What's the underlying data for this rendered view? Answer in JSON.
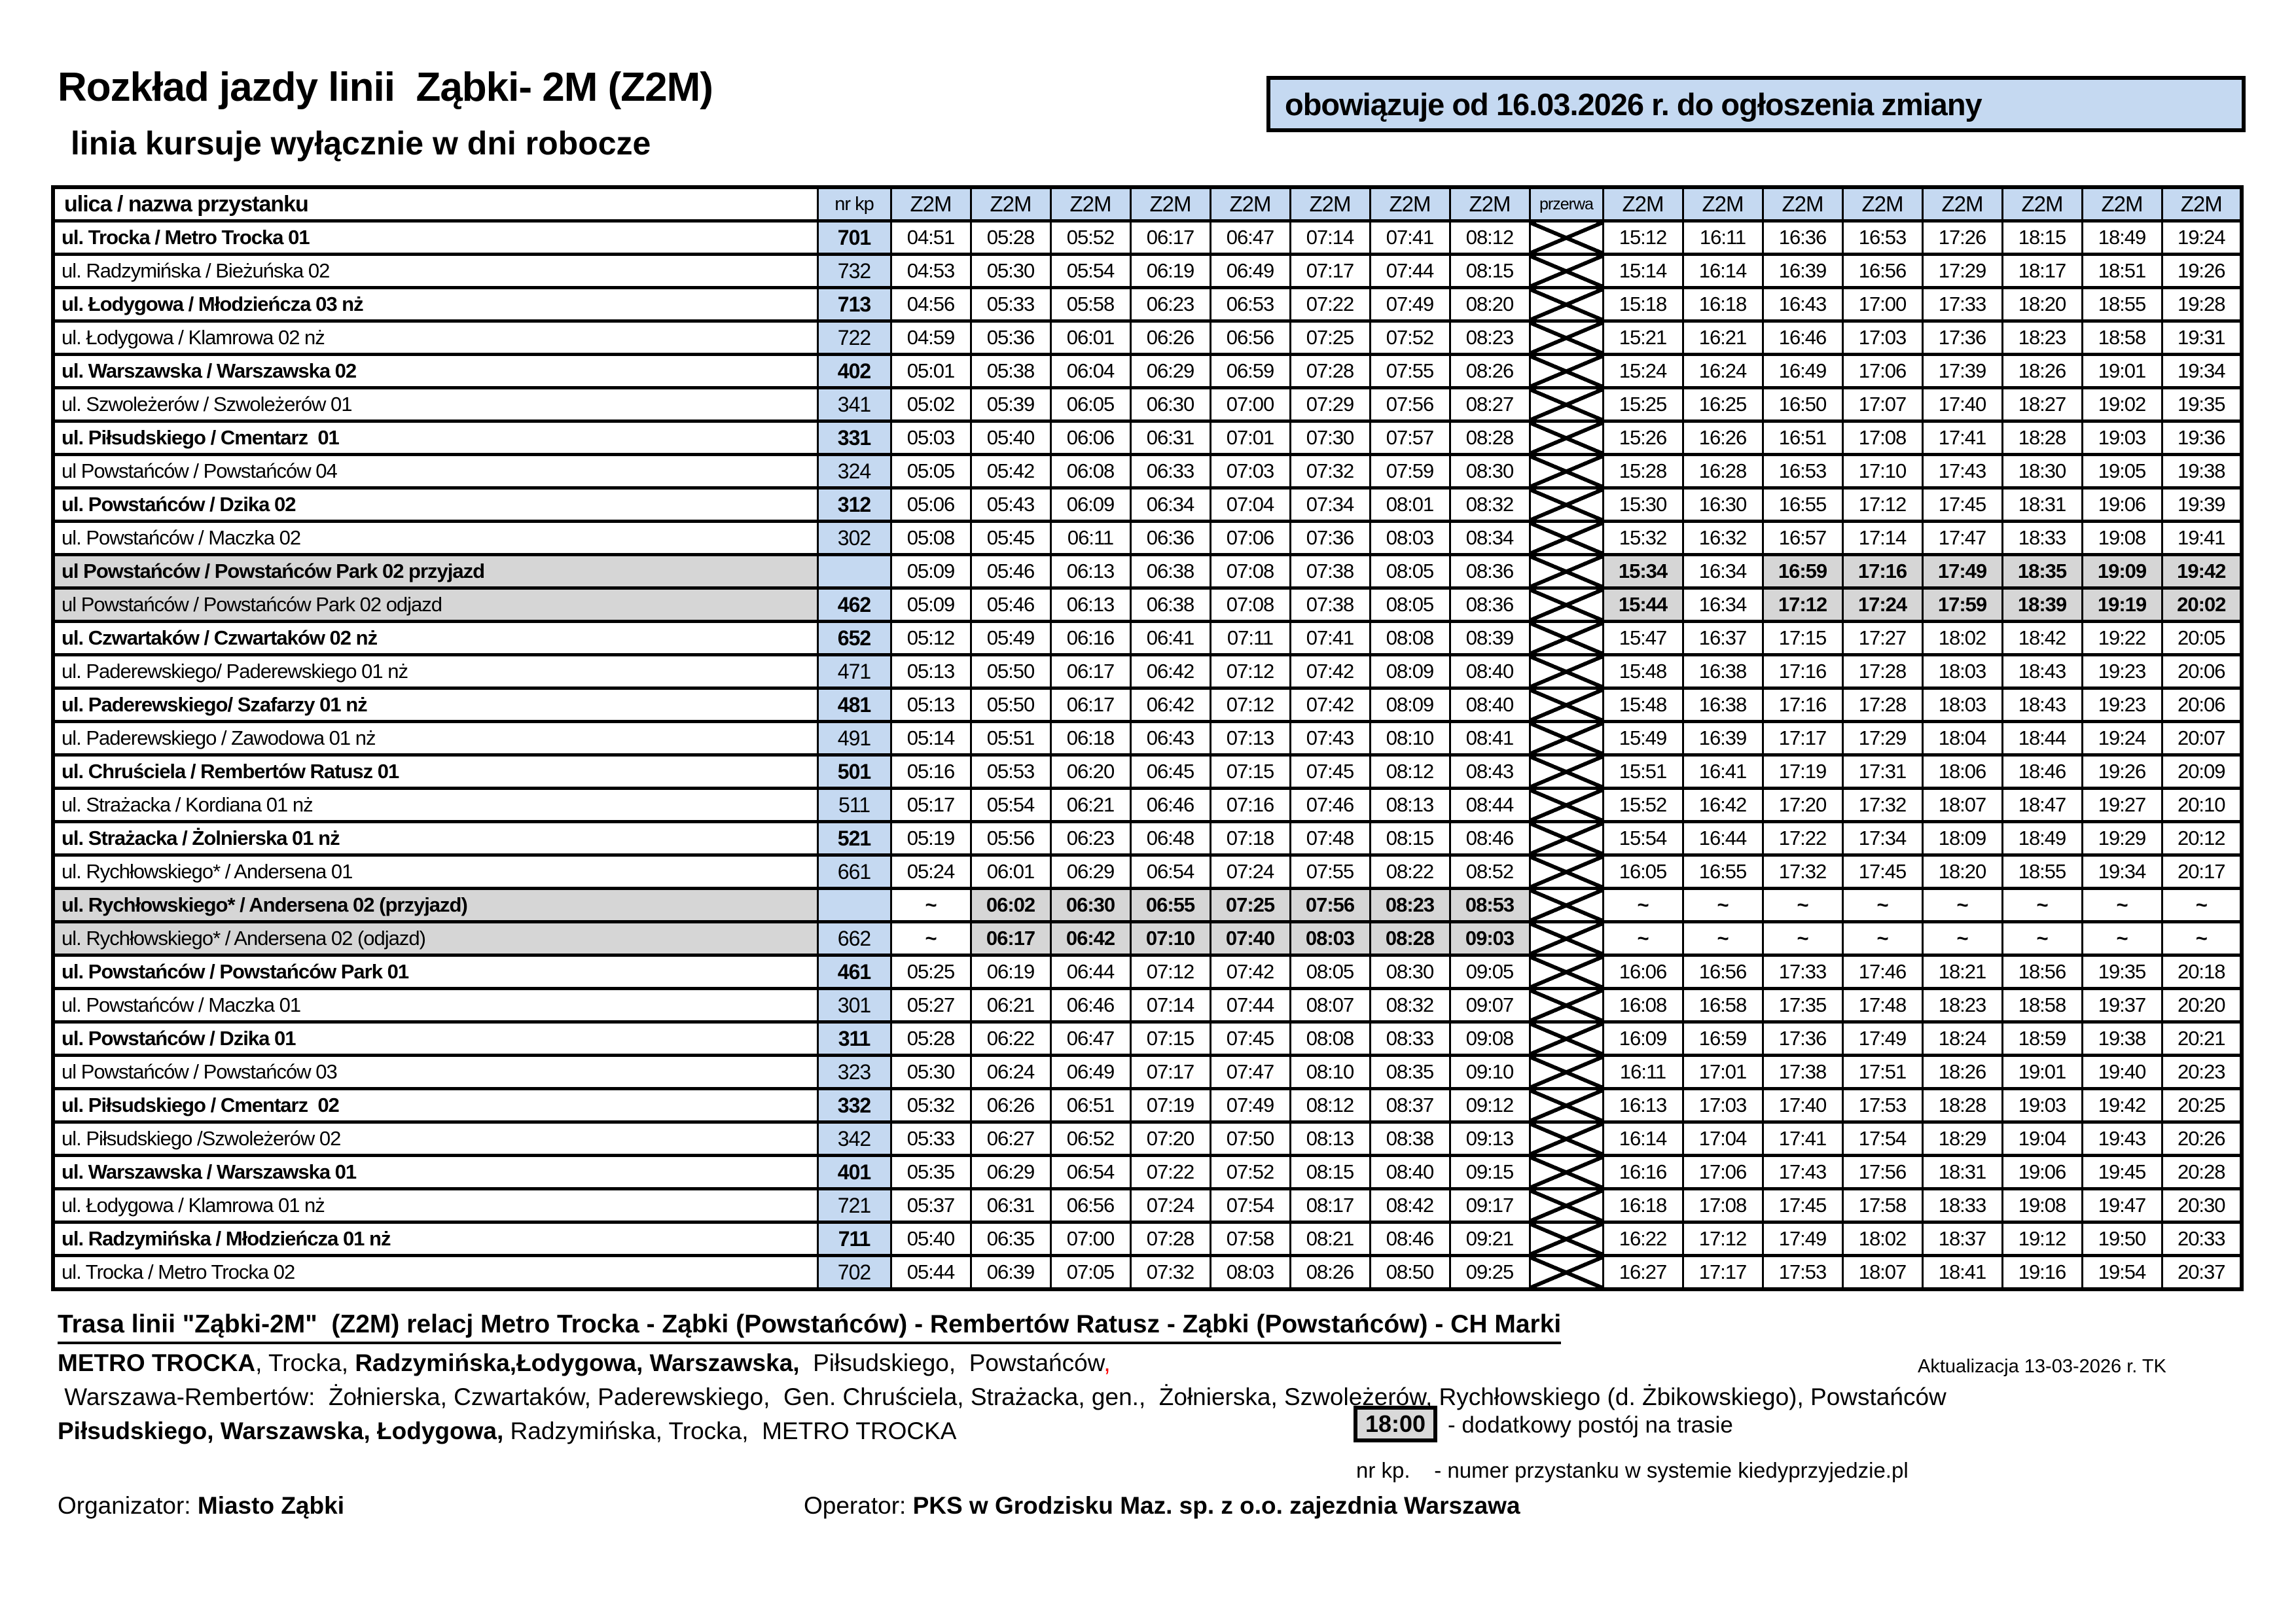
{
  "title": "Rozkład jazdy linii  Ząbki- 2M (Z2M)",
  "subtitle": "linia kursuje wyłącznie w dni robocze",
  "validity_note": "obowiązuje od 16.03.2026 r. do ogłoszenia zmiany",
  "colors": {
    "header_blue": "#c5d9f1",
    "highlight_gray": "#d6d6d6",
    "red": "#ff0000"
  },
  "table": {
    "col_street": "ulica / nazwa przystanku",
    "col_nr": "nr kp",
    "col_line": "Z2M",
    "col_break": "przerwa",
    "rows": [
      {
        "name": "ul. Trocka / Metro Trocka 01",
        "nr": "701",
        "bold": true,
        "times": [
          "04:51",
          "05:28",
          "05:52",
          "06:17",
          "06:47",
          "07:14",
          "07:41",
          "08:12",
          "15:12",
          "16:11",
          "16:36",
          "16:53",
          "17:26",
          "18:15",
          "18:49",
          "19:24"
        ]
      },
      {
        "name": "ul. Radzymińska / Bieżuńska 02",
        "nr": "732",
        "bold": false,
        "times": [
          "04:53",
          "05:30",
          "05:54",
          "06:19",
          "06:49",
          "07:17",
          "07:44",
          "08:15",
          "15:14",
          "16:14",
          "16:39",
          "16:56",
          "17:29",
          "18:17",
          "18:51",
          "19:26"
        ]
      },
      {
        "name": "ul. Łodygowa / Młodzieńcza 03 nż",
        "nr": "713",
        "bold": true,
        "times": [
          "04:56",
          "05:33",
          "05:58",
          "06:23",
          "06:53",
          "07:22",
          "07:49",
          "08:20",
          "15:18",
          "16:18",
          "16:43",
          "17:00",
          "17:33",
          "18:20",
          "18:55",
          "19:28"
        ]
      },
      {
        "name": "ul. Łodygowa / Klamrowa 02 nż",
        "nr": "722",
        "bold": false,
        "times": [
          "04:59",
          "05:36",
          "06:01",
          "06:26",
          "06:56",
          "07:25",
          "07:52",
          "08:23",
          "15:21",
          "16:21",
          "16:46",
          "17:03",
          "17:36",
          "18:23",
          "18:58",
          "19:31"
        ]
      },
      {
        "name": "ul. Warszawska / Warszawska 02",
        "nr": "402",
        "bold": true,
        "times": [
          "05:01",
          "05:38",
          "06:04",
          "06:29",
          "06:59",
          "07:28",
          "07:55",
          "08:26",
          "15:24",
          "16:24",
          "16:49",
          "17:06",
          "17:39",
          "18:26",
          "19:01",
          "19:34"
        ]
      },
      {
        "name": "ul. Szwoleżerów / Szwoleżerów 01",
        "nr": "341",
        "bold": false,
        "times": [
          "05:02",
          "05:39",
          "06:05",
          "06:30",
          "07:00",
          "07:29",
          "07:56",
          "08:27",
          "15:25",
          "16:25",
          "16:50",
          "17:07",
          "17:40",
          "18:27",
          "19:02",
          "19:35"
        ]
      },
      {
        "name": "ul. Piłsudskiego / Cmentarz  01",
        "nr": "331",
        "bold": true,
        "times": [
          "05:03",
          "05:40",
          "06:06",
          "06:31",
          "07:01",
          "07:30",
          "07:57",
          "08:28",
          "15:26",
          "16:26",
          "16:51",
          "17:08",
          "17:41",
          "18:28",
          "19:03",
          "19:36"
        ]
      },
      {
        "name": "ul Powstańców / Powstańców 04",
        "nr": "324",
        "bold": false,
        "times": [
          "05:05",
          "05:42",
          "06:08",
          "06:33",
          "07:03",
          "07:32",
          "07:59",
          "08:30",
          "15:28",
          "16:28",
          "16:53",
          "17:10",
          "17:43",
          "18:30",
          "19:05",
          "19:38"
        ]
      },
      {
        "name": "ul. Powstańców / Dzika 02",
        "nr": "312",
        "bold": true,
        "times": [
          "05:06",
          "05:43",
          "06:09",
          "06:34",
          "07:04",
          "07:34",
          "08:01",
          "08:32",
          "15:30",
          "16:30",
          "16:55",
          "17:12",
          "17:45",
          "18:31",
          "19:06",
          "19:39"
        ]
      },
      {
        "name": "ul. Powstańców / Maczka 02",
        "nr": "302",
        "bold": false,
        "times": [
          "05:08",
          "05:45",
          "06:11",
          "06:36",
          "07:06",
          "07:36",
          "08:03",
          "08:34",
          "15:32",
          "16:32",
          "16:57",
          "17:14",
          "17:47",
          "18:33",
          "19:08",
          "19:41"
        ]
      },
      {
        "name": "ul Powstańców / Powstańców Park 02 przyjazd",
        "nr": "",
        "bold": true,
        "gray": true,
        "gray_cells": [
          8,
          10,
          11,
          12,
          13,
          14,
          15
        ],
        "times": [
          "05:09",
          "05:46",
          "06:13",
          "06:38",
          "07:08",
          "07:38",
          "08:05",
          "08:36",
          "15:34",
          "16:34",
          "16:59",
          "17:16",
          "17:49",
          "18:35",
          "19:09",
          "19:42"
        ]
      },
      {
        "name": "ul Powstańców / Powstańców Park 02 odjazd",
        "nr": "462",
        "bold": false,
        "nr_bold": true,
        "gray": true,
        "gray_cells": [
          8,
          10,
          11,
          12,
          13,
          14,
          15
        ],
        "times": [
          "05:09",
          "05:46",
          "06:13",
          "06:38",
          "07:08",
          "07:38",
          "08:05",
          "08:36",
          "15:44",
          "16:34",
          "17:12",
          "17:24",
          "17:59",
          "18:39",
          "19:19",
          "20:02"
        ]
      },
      {
        "name": "ul. Czwartaków / Czwartaków 02 nż",
        "nr": "652",
        "bold": true,
        "times": [
          "05:12",
          "05:49",
          "06:16",
          "06:41",
          "07:11",
          "07:41",
          "08:08",
          "08:39",
          "15:47",
          "16:37",
          "17:15",
          "17:27",
          "18:02",
          "18:42",
          "19:22",
          "20:05"
        ]
      },
      {
        "name": "ul. Paderewskiego/ Paderewskiego 01 nż",
        "nr": "471",
        "bold": false,
        "times": [
          "05:13",
          "05:50",
          "06:17",
          "06:42",
          "07:12",
          "07:42",
          "08:09",
          "08:40",
          "15:48",
          "16:38",
          "17:16",
          "17:28",
          "18:03",
          "18:43",
          "19:23",
          "20:06"
        ]
      },
      {
        "name": "ul. Paderewskiego/ Szafarzy 01 nż",
        "nr": "481",
        "bold": true,
        "times": [
          "05:13",
          "05:50",
          "06:17",
          "06:42",
          "07:12",
          "07:42",
          "08:09",
          "08:40",
          "15:48",
          "16:38",
          "17:16",
          "17:28",
          "18:03",
          "18:43",
          "19:23",
          "20:06"
        ]
      },
      {
        "name": "ul. Paderewskiego / Zawodowa 01 nż",
        "nr": "491",
        "bold": false,
        "times": [
          "05:14",
          "05:51",
          "06:18",
          "06:43",
          "07:13",
          "07:43",
          "08:10",
          "08:41",
          "15:49",
          "16:39",
          "17:17",
          "17:29",
          "18:04",
          "18:44",
          "19:24",
          "20:07"
        ]
      },
      {
        "name": "ul. Chruściela / Rembertów Ratusz 01",
        "nr": "501",
        "bold": true,
        "times": [
          "05:16",
          "05:53",
          "06:20",
          "06:45",
          "07:15",
          "07:45",
          "08:12",
          "08:43",
          "15:51",
          "16:41",
          "17:19",
          "17:31",
          "18:06",
          "18:46",
          "19:26",
          "20:09"
        ]
      },
      {
        "name": "ul. Strażacka / Kordiana 01 nż",
        "nr": "511",
        "bold": false,
        "times": [
          "05:17",
          "05:54",
          "06:21",
          "06:46",
          "07:16",
          "07:46",
          "08:13",
          "08:44",
          "15:52",
          "16:42",
          "17:20",
          "17:32",
          "18:07",
          "18:47",
          "19:27",
          "20:10"
        ]
      },
      {
        "name": "ul. Strażacka / Żolnierska 01 nż",
        "nr": "521",
        "bold": true,
        "times": [
          "05:19",
          "05:56",
          "06:23",
          "06:48",
          "07:18",
          "07:48",
          "08:15",
          "08:46",
          "15:54",
          "16:44",
          "17:22",
          "17:34",
          "18:09",
          "18:49",
          "19:29",
          "20:12"
        ]
      },
      {
        "name": "ul. Rychłowskiego* / Andersena 01",
        "nr": "661",
        "bold": false,
        "times": [
          "05:24",
          "06:01",
          "06:29",
          "06:54",
          "07:24",
          "07:55",
          "08:22",
          "08:52",
          "16:05",
          "16:55",
          "17:32",
          "17:45",
          "18:20",
          "18:55",
          "19:34",
          "20:17"
        ]
      },
      {
        "name": "ul. Rychłowskiego* / Andersena 02 (przyjazd)",
        "nr": "",
        "bold": true,
        "gray": true,
        "gray_cells": [
          1,
          2,
          3,
          4,
          5,
          6,
          7
        ],
        "times": [
          "~",
          "06:02",
          "06:30",
          "06:55",
          "07:25",
          "07:56",
          "08:23",
          "08:53",
          "~",
          "~",
          "~",
          "~",
          "~",
          "~",
          "~",
          "~"
        ]
      },
      {
        "name": "ul. Rychłowskiego* / Andersena 02 (odjazd)",
        "nr": "662",
        "bold": false,
        "gray": true,
        "gray_cells": [
          1,
          2,
          3,
          4,
          5,
          6,
          7
        ],
        "times": [
          "~",
          "06:17",
          "06:42",
          "07:10",
          "07:40",
          "08:03",
          "08:28",
          "09:03",
          "~",
          "~",
          "~",
          "~",
          "~",
          "~",
          "~",
          "~"
        ]
      },
      {
        "name": "ul. Powstańców / Powstańców Park 01",
        "nr": "461",
        "bold": true,
        "times": [
          "05:25",
          "06:19",
          "06:44",
          "07:12",
          "07:42",
          "08:05",
          "08:30",
          "09:05",
          "16:06",
          "16:56",
          "17:33",
          "17:46",
          "18:21",
          "18:56",
          "19:35",
          "20:18"
        ]
      },
      {
        "name": "ul. Powstańców / Maczka 01",
        "nr": "301",
        "bold": false,
        "times": [
          "05:27",
          "06:21",
          "06:46",
          "07:14",
          "07:44",
          "08:07",
          "08:32",
          "09:07",
          "16:08",
          "16:58",
          "17:35",
          "17:48",
          "18:23",
          "18:58",
          "19:37",
          "20:20"
        ]
      },
      {
        "name": "ul. Powstańców / Dzika 01",
        "nr": "311",
        "bold": true,
        "times": [
          "05:28",
          "06:22",
          "06:47",
          "07:15",
          "07:45",
          "08:08",
          "08:33",
          "09:08",
          "16:09",
          "16:59",
          "17:36",
          "17:49",
          "18:24",
          "18:59",
          "19:38",
          "20:21"
        ]
      },
      {
        "name": "ul Powstańców / Powstańców 03",
        "nr": "323",
        "bold": false,
        "times": [
          "05:30",
          "06:24",
          "06:49",
          "07:17",
          "07:47",
          "08:10",
          "08:35",
          "09:10",
          "16:11",
          "17:01",
          "17:38",
          "17:51",
          "18:26",
          "19:01",
          "19:40",
          "20:23"
        ]
      },
      {
        "name": "ul. Piłsudskiego / Cmentarz  02",
        "nr": "332",
        "bold": true,
        "times": [
          "05:32",
          "06:26",
          "06:51",
          "07:19",
          "07:49",
          "08:12",
          "08:37",
          "09:12",
          "16:13",
          "17:03",
          "17:40",
          "17:53",
          "18:28",
          "19:03",
          "19:42",
          "20:25"
        ]
      },
      {
        "name": "ul. Piłsudskiego /Szwoleżerów 02",
        "nr": "342",
        "bold": false,
        "times": [
          "05:33",
          "06:27",
          "06:52",
          "07:20",
          "07:50",
          "08:13",
          "08:38",
          "09:13",
          "16:14",
          "17:04",
          "17:41",
          "17:54",
          "18:29",
          "19:04",
          "19:43",
          "20:26"
        ]
      },
      {
        "name": "ul. Warszawska / Warszawska 01",
        "nr": "401",
        "bold": true,
        "times": [
          "05:35",
          "06:29",
          "06:54",
          "07:22",
          "07:52",
          "08:15",
          "08:40",
          "09:15",
          "16:16",
          "17:06",
          "17:43",
          "17:56",
          "18:31",
          "19:06",
          "19:45",
          "20:28"
        ]
      },
      {
        "name": "ul. Łodygowa / Klamrowa 01 nż",
        "nr": "721",
        "bold": false,
        "times": [
          "05:37",
          "06:31",
          "06:56",
          "07:24",
          "07:54",
          "08:17",
          "08:42",
          "09:17",
          "16:18",
          "17:08",
          "17:45",
          "17:58",
          "18:33",
          "19:08",
          "19:47",
          "20:30"
        ]
      },
      {
        "name": "ul. Radzymińska / Młodzieńcza 01 nż",
        "nr": "711",
        "bold": true,
        "times": [
          "05:40",
          "06:35",
          "07:00",
          "07:28",
          "07:58",
          "08:21",
          "08:46",
          "09:21",
          "16:22",
          "17:12",
          "17:49",
          "18:02",
          "18:37",
          "19:12",
          "19:50",
          "20:33"
        ]
      },
      {
        "name": "ul. Trocka / Metro Trocka 02",
        "nr": "702",
        "bold": false,
        "times": [
          "05:44",
          "06:39",
          "07:05",
          "07:32",
          "08:03",
          "08:26",
          "08:50",
          "09:25",
          "16:27",
          "17:17",
          "17:53",
          "18:07",
          "18:41",
          "19:16",
          "19:54",
          "20:37"
        ]
      }
    ]
  },
  "footer": {
    "route_line": "Trasa linii \"Ząbki-2M\"  (Z2M) relacj Metro Trocka - Ząbki (Powstańców) - Rembertów Ratusz - Ząbki (Powstańców) - CH Marki",
    "route_detail_1": [
      {
        "t": "METRO TROCKA",
        "b": 1
      },
      {
        "t": ", Trocka, "
      },
      {
        "t": "Radzymińska,Łodygowa, Warszawska,",
        "b": 1
      },
      {
        "t": "  Piłsudskiego,  Powstańców"
      },
      {
        "t": ",",
        "r": 1
      }
    ],
    "update_note": "Aktualizacja 13-03-2026 r. TK",
    "route_detail_2": [
      {
        "t": " Warszawa-Rembertów:  Żołnierska, Czwartaków, Paderewskiego,  Gen. Chruściela, Strażacka, gen.,  Żołnierska, Szwoleżerów, Rychłowskiego (d. Żbikowskiego), Powstańców"
      }
    ],
    "route_detail_3": [
      {
        "t": "Piłsudskiego, Warszawska, Łodygowa,",
        "b": 1
      },
      {
        "t": " Radzymińska, Trocka,  METRO TROCKA"
      }
    ],
    "legend_time": "18:00",
    "legend_time_desc": "- dodatkowy postój na trasie",
    "legend_nrkp_label": "nr kp.",
    "legend_nrkp_desc": "- numer przystanku w systemie kiedyprzyjedzie.pl",
    "organizer_label": "Organizator: ",
    "organizer": "Miasto Ząbki",
    "operator_label": "Operator: ",
    "operator": "PKS w Grodzisku Maz. sp. z o.o. zajezdnia Warszawa"
  }
}
